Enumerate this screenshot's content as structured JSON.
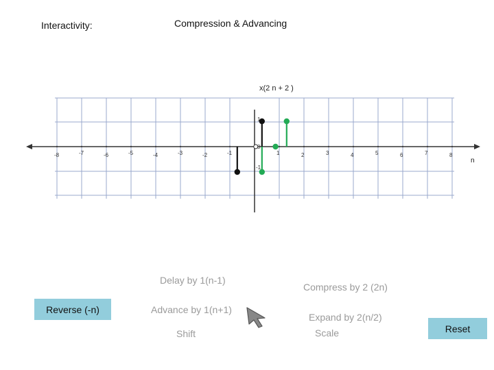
{
  "header": {
    "interactivity_label": "Interactivity:",
    "title": "Compression & Advancing"
  },
  "plot": {
    "signal_label": "x(2 n + 2 )",
    "axis_name": "n",
    "x_ticks": [
      "-8",
      "-7",
      "-6",
      "-5",
      "-4",
      "-3",
      "-2",
      "-1",
      "1",
      "2",
      "3",
      "4",
      "5",
      "6",
      "7",
      "8"
    ],
    "y_ticks": [
      "1",
      "0",
      "-1"
    ],
    "colors": {
      "black_series": "#111111",
      "green_series": "#22aa55",
      "grid": "#9aa8cc"
    },
    "stems_black": [
      {
        "n": -0.7,
        "value": -1
      },
      {
        "n": 0.3,
        "value": 1
      }
    ],
    "stems_green": [
      {
        "n": 0.3,
        "value": -1
      },
      {
        "n": 0.85,
        "value": 0
      },
      {
        "n": 1.3,
        "value": 1
      }
    ],
    "open_marker": {
      "n": 0.05,
      "value": 0
    }
  },
  "controls": {
    "delay": "Delay by 1(n-1)",
    "advance": "Advance by 1(n+1)",
    "shift": "Shift",
    "compress": "Compress by 2 (2n)",
    "expand": "Expand by 2(n/2)",
    "scale": "Scale",
    "reverse": "Reverse (-n)",
    "reset": "Reset"
  },
  "cursor_icon": "arrow-pointer-icon"
}
